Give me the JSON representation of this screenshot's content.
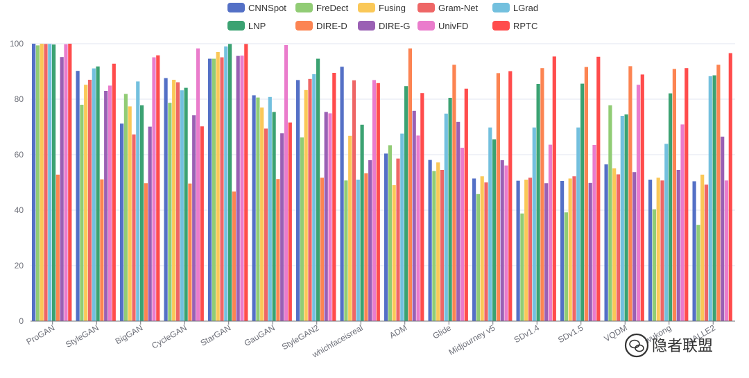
{
  "chart_data": {
    "type": "bar",
    "categories": [
      "ProGAN",
      "StyleGAN",
      "BigGAN",
      "CycleGAN",
      "StarGAN",
      "GauGAN",
      "StyleGAN2",
      "whichfaceisreal",
      "ADM",
      "Glide",
      "Midjourney v5",
      "SDv1.4",
      "SDv1.5",
      "VQDM",
      "wukong",
      "DALLE2"
    ],
    "series": [
      {
        "name": "CNNSpot",
        "color": "#5470c6",
        "values": [
          100,
          90.2,
          71.2,
          87.6,
          94.6,
          81.4,
          86.9,
          91.7,
          60.4,
          58.1,
          51.4,
          50.6,
          50.5,
          56.5,
          51.0,
          50.4
        ]
      },
      {
        "name": "FreDect",
        "color": "#91cc75",
        "values": [
          99.4,
          78.0,
          81.9,
          78.7,
          94.6,
          80.6,
          66.2,
          50.7,
          63.4,
          54.1,
          45.8,
          38.8,
          39.2,
          77.8,
          40.3,
          34.7
        ]
      },
      {
        "name": "Fusing",
        "color": "#fac858",
        "values": [
          100,
          85.2,
          77.4,
          87.0,
          97.0,
          77.0,
          83.3,
          66.8,
          49.0,
          57.2,
          52.2,
          51.0,
          51.4,
          55.1,
          51.7,
          52.8
        ]
      },
      {
        "name": "Gram-Net",
        "color": "#ee6666",
        "values": [
          99.9,
          87.0,
          67.3,
          86.1,
          95.1,
          69.4,
          87.3,
          86.8,
          58.6,
          54.5,
          50.0,
          51.7,
          52.2,
          52.9,
          50.7,
          49.2
        ]
      },
      {
        "name": "LGrad",
        "color": "#73c0de",
        "values": [
          99.9,
          91.1,
          86.4,
          83.2,
          99.0,
          80.8,
          89.0,
          51.0,
          67.6,
          74.8,
          69.8,
          69.8,
          69.8,
          74.0,
          63.9,
          88.3
        ]
      },
      {
        "name": "LNP",
        "color": "#3ba272",
        "values": [
          99.7,
          91.8,
          77.8,
          84.1,
          99.9,
          75.4,
          94.6,
          70.8,
          84.7,
          80.5,
          65.5,
          85.5,
          85.6,
          74.5,
          82.1,
          88.6
        ]
      },
      {
        "name": "DIRE-D",
        "color": "#fc8452",
        "values": [
          52.8,
          51.1,
          49.7,
          49.6,
          46.7,
          51.2,
          51.7,
          53.3,
          98.3,
          92.4,
          89.4,
          91.2,
          91.6,
          91.9,
          90.9,
          92.4
        ]
      },
      {
        "name": "DIRE-G",
        "color": "#9a60b4",
        "values": [
          95.2,
          83.0,
          70.1,
          74.2,
          95.6,
          67.7,
          75.4,
          58.0,
          75.8,
          71.8,
          58.0,
          49.7,
          49.8,
          53.7,
          54.5,
          66.5
        ]
      },
      {
        "name": "UnivFD",
        "color": "#ea7ccc",
        "values": [
          99.8,
          84.9,
          95.1,
          98.3,
          95.7,
          99.5,
          74.9,
          86.9,
          66.9,
          62.5,
          56.1,
          63.6,
          63.5,
          85.2,
          70.9,
          50.7
        ]
      },
      {
        "name": "RPTC",
        "color": "#ff4c4c",
        "values": [
          100,
          92.8,
          95.8,
          70.2,
          99.9,
          71.6,
          89.5,
          85.8,
          82.2,
          83.8,
          90.1,
          95.4,
          95.3,
          88.9,
          91.2,
          96.6
        ]
      }
    ],
    "yticks": [
      "0",
      "20",
      "40",
      "60",
      "80",
      "100"
    ],
    "ylim": [
      0,
      100
    ],
    "grid": true,
    "legend_position": "top-center"
  },
  "watermark": {
    "text": "隐者联盟",
    "icon": "wechat-icon"
  }
}
